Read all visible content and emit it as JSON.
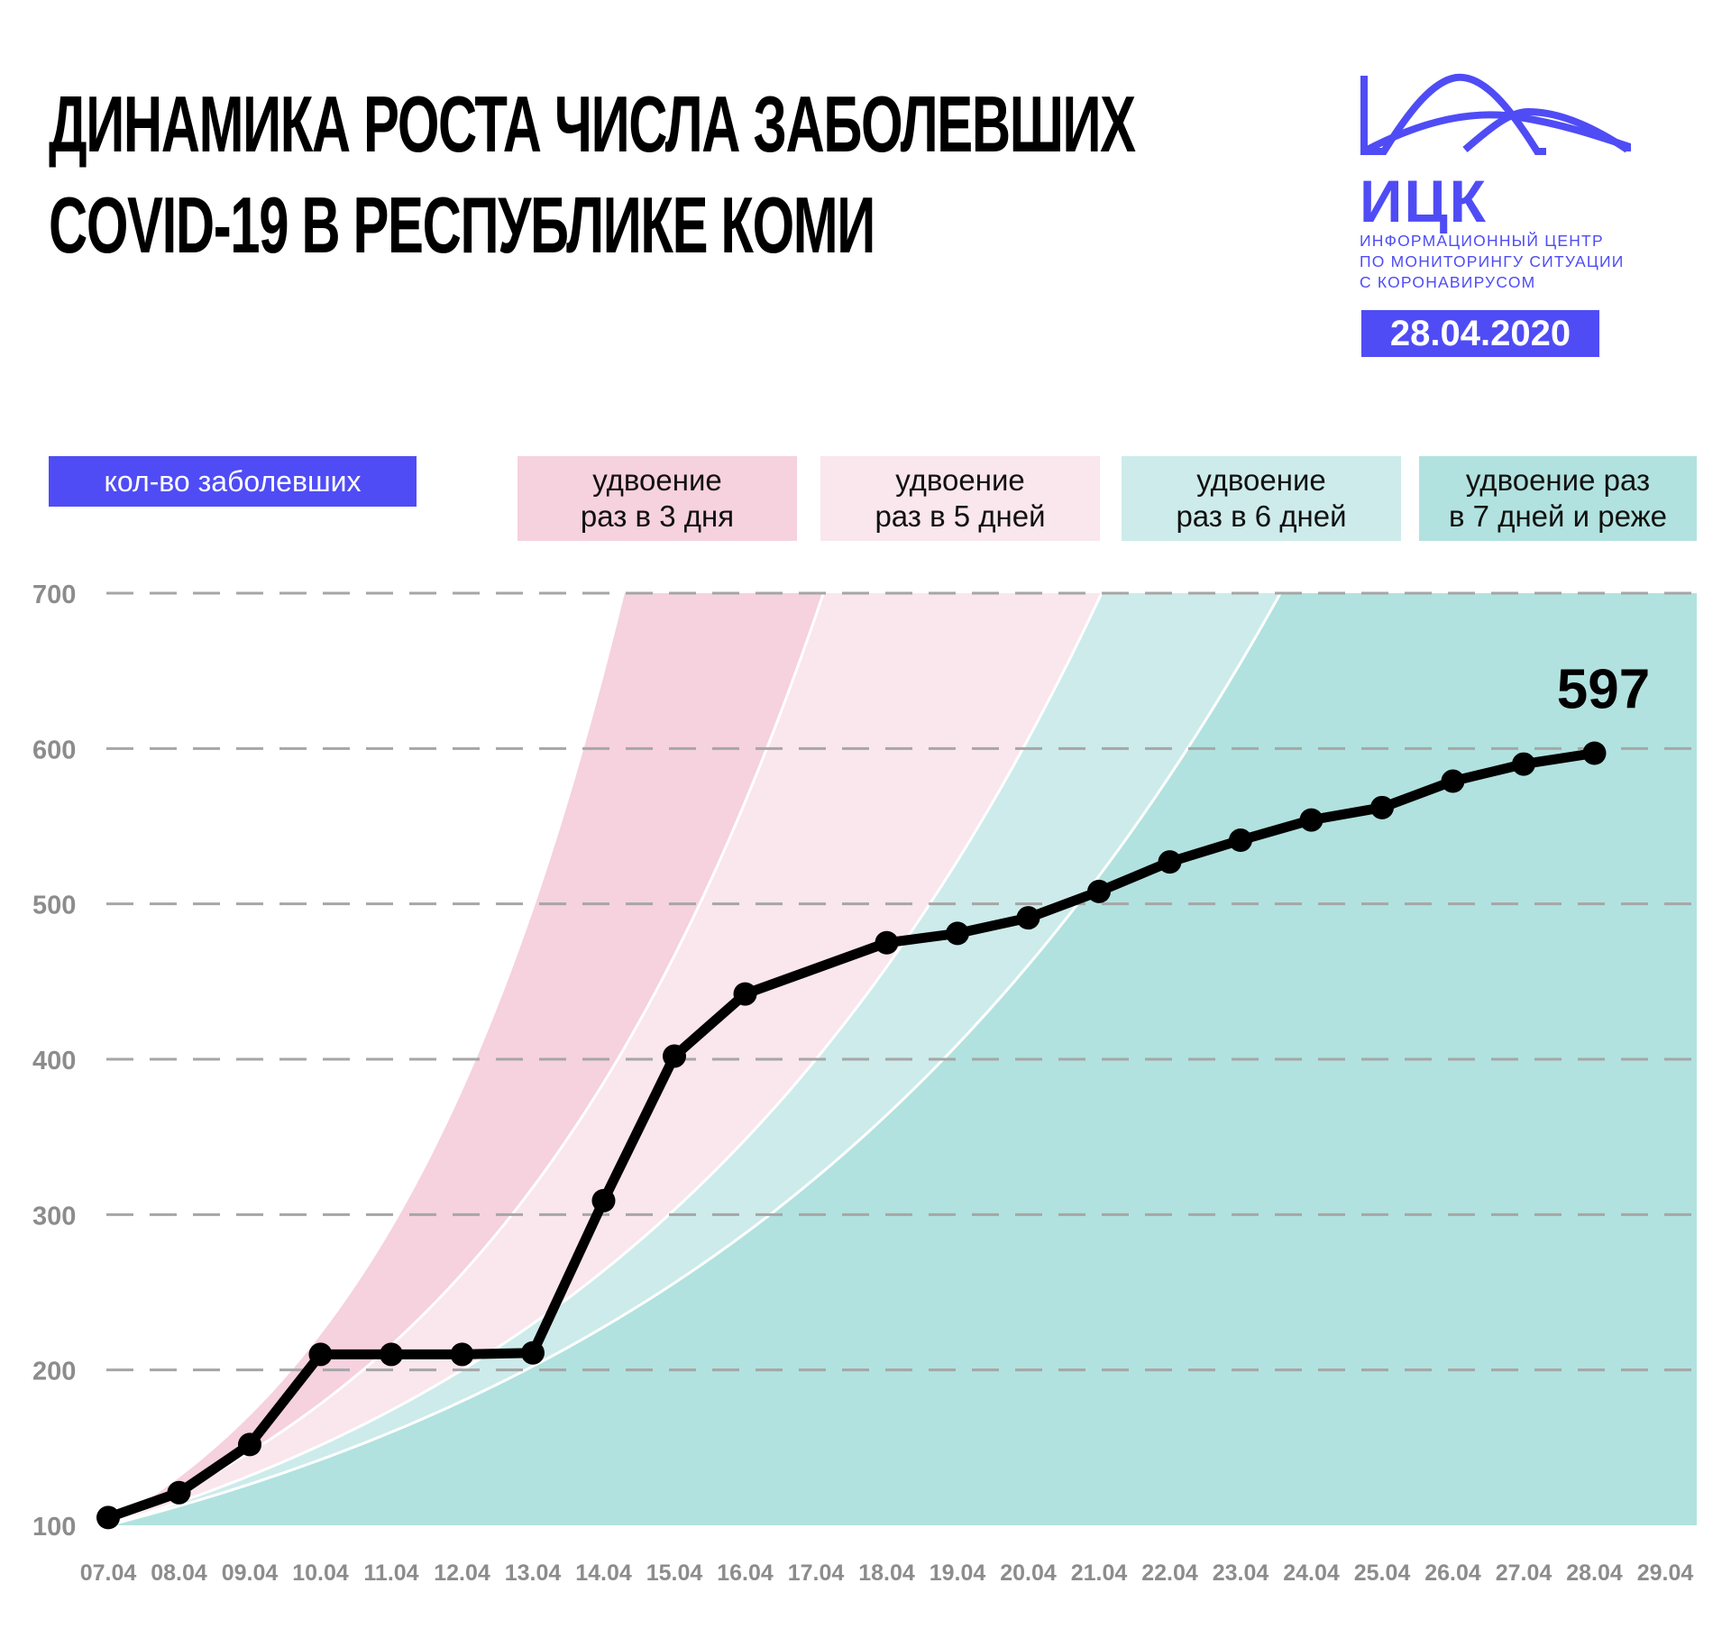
{
  "header": {
    "title_line1": "ДИНАМИКА РОСТА ЧИСЛА ЗАБОЛЕВШИХ",
    "title_line2": "COVID-19 В РЕСПУБЛИКЕ КОМИ"
  },
  "logo": {
    "abbr": "ИЦК",
    "line1": "ИНФОРМАЦИОННЫЙ ЦЕНТР",
    "line2": "ПО МОНИТОРИНГУ СИТУАЦИИ",
    "line3": "С КОРОНАВИРУСОМ",
    "date": "28.04.2020"
  },
  "legend": {
    "count_label": "кол-во заболевших",
    "band1": {
      "line1": "удвоение",
      "line2": "раз в 3 дня",
      "color": "#f6d1de"
    },
    "band2": {
      "line1": "удвоение",
      "line2": "раз в 5 дней",
      "color": "#fae6ed"
    },
    "band3": {
      "line1": "удвоение",
      "line2": "раз в 6 дней",
      "color": "#cdebeb"
    },
    "band4": {
      "line1": "удвоение раз",
      "line2": "в 7 дней и реже",
      "color": "#b1e2df"
    }
  },
  "colors": {
    "accent": "#4f4cf5",
    "line": "#000000",
    "grid": "#a6a6a6",
    "tick_text": "#8c8c8c"
  },
  "chart_data": {
    "type": "line",
    "title": "ДИНАМИКА РОСТА ЧИСЛА ЗАБОЛЕВШИХ COVID-19 В РЕСПУБЛИКЕ КОМИ",
    "xlabel": "",
    "ylabel": "",
    "ylim": [
      100,
      700
    ],
    "yticks": [
      100,
      200,
      300,
      400,
      500,
      600,
      700
    ],
    "grid": true,
    "categories": [
      "07.04",
      "08.04",
      "09.04",
      "10.04",
      "11.04",
      "12.04",
      "13.04",
      "14.04",
      "15.04",
      "16.04",
      "17.04",
      "18.04",
      "19.04",
      "20.04",
      "21.04",
      "22.04",
      "23.04",
      "24.04",
      "25.04",
      "26.04",
      "27.04",
      "28.04",
      "29.04"
    ],
    "series": [
      {
        "name": "кол-во заболевших",
        "values": [
          105,
          121,
          152,
          210,
          210,
          210,
          211,
          309,
          402,
          442,
          null,
          475,
          481,
          491,
          508,
          527,
          541,
          554,
          562,
          579,
          590,
          597,
          null
        ]
      }
    ],
    "bands": [
      {
        "name": "удвоение раз в 3 дня",
        "doubling_days": 3
      },
      {
        "name": "удвоение раз в 5 дней",
        "doubling_days": 5
      },
      {
        "name": "удвоение раз в 6 дней",
        "doubling_days": 6
      },
      {
        "name": "удвоение раз в 7 дней и реже",
        "doubling_days": 7
      }
    ],
    "annotation": "597"
  }
}
